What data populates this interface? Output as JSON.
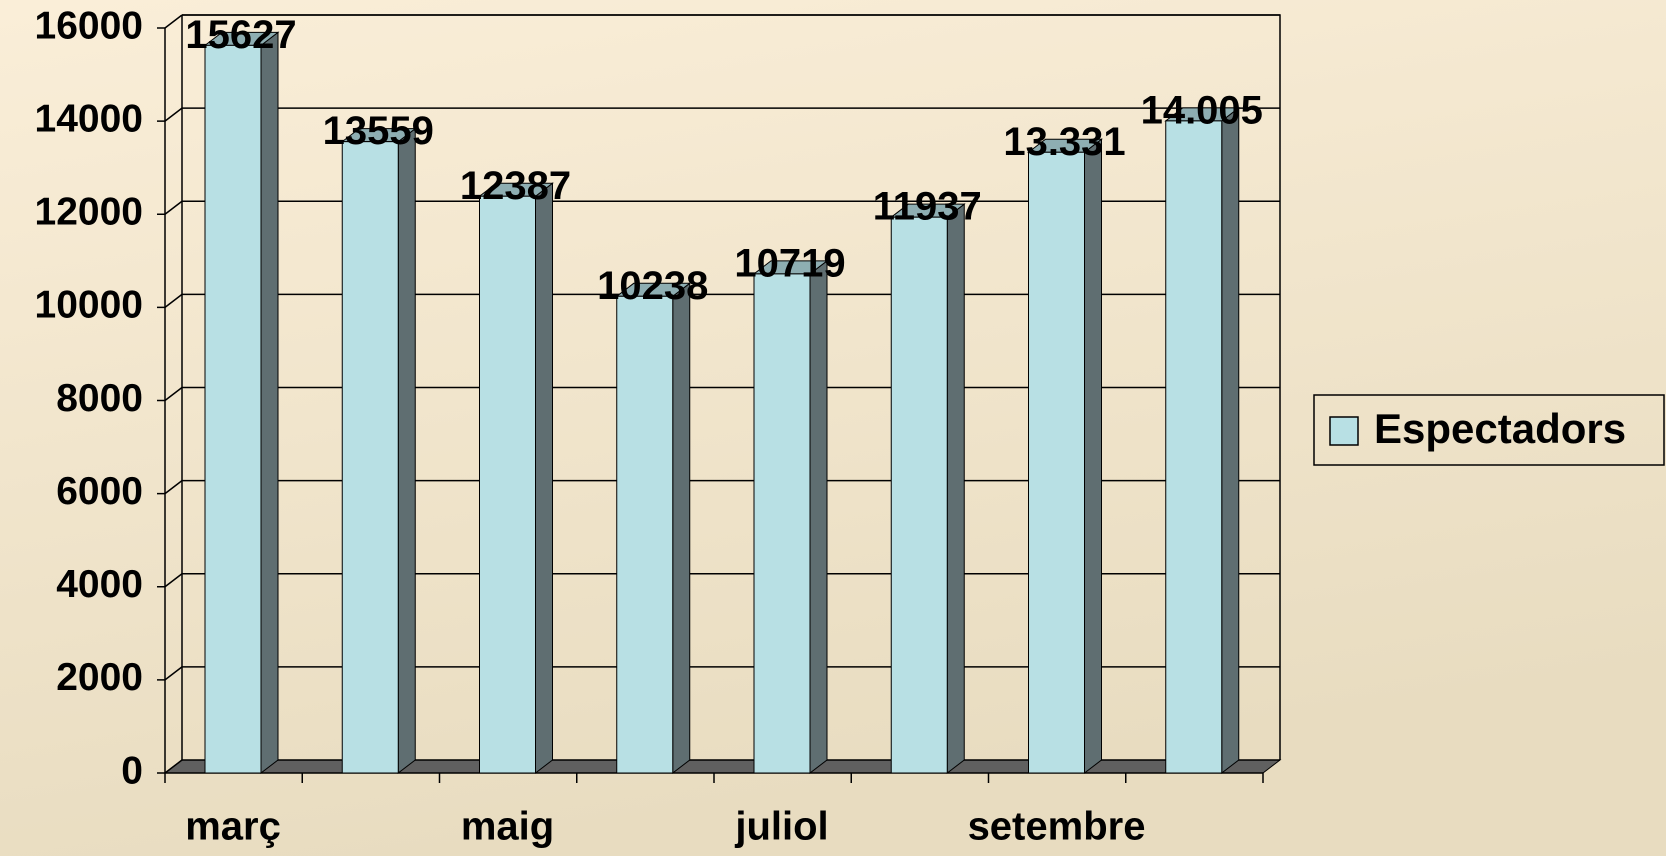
{
  "chart_data": {
    "type": "bar3d",
    "categories": [
      "març",
      null,
      "maig",
      null,
      "juliol",
      null,
      "setembre",
      null
    ],
    "series": [
      {
        "name": "Espectadors",
        "color": "#b8e0e4",
        "values": [
          15627,
          13559,
          12387,
          10238,
          10719,
          11937,
          13331,
          14005
        ],
        "value_labels": [
          "15627",
          "13559",
          "12387",
          "10238",
          "10719",
          "11937",
          "13.331",
          "14.005"
        ]
      }
    ],
    "ylim": [
      0,
      16000
    ],
    "yticks": [
      0,
      2000,
      4000,
      6000,
      8000,
      10000,
      12000,
      14000,
      16000
    ],
    "grid": true,
    "legend": "right"
  }
}
